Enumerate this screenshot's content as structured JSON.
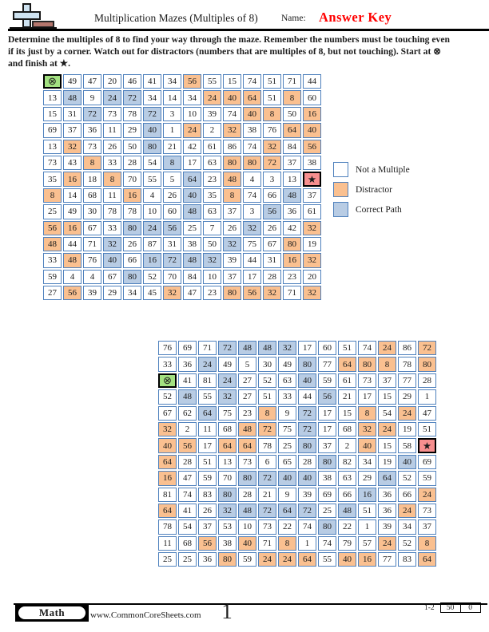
{
  "header": {
    "title": "Multiplication Mazes (Multiples of 8)",
    "name_label": "Name:",
    "answer_key": "Answer Key"
  },
  "instructions": {
    "lines": [
      "Determine the multiples of 8 to find your way through the maze. Remember the numbers must be touching even",
      "if its just by a corner. Watch out for distractors (numbers that are multiples of 8, but not touching). Start at ⊗",
      "and finish at ★."
    ]
  },
  "symbols": {
    "start": "⊗",
    "finish": "★"
  },
  "colors": {
    "grid_border": "#4f81bd",
    "path_fill": "#b8cce4",
    "distractor_fill": "#fac090",
    "start_fill": "#a3e181",
    "finish_fill": "#f78f8f",
    "answer_key_red": "#ff0000"
  },
  "legend": {
    "items": [
      {
        "label": "Not a Multiple",
        "swatch": "white"
      },
      {
        "label": "Distractor",
        "swatch": "orange"
      },
      {
        "label": "Correct Path",
        "swatch": "blue"
      }
    ]
  },
  "mazes": [
    {
      "rows": [
        [
          "⊗",
          "49",
          "47",
          "20",
          "46",
          "41",
          "34",
          "56",
          "55",
          "15",
          "74",
          "51",
          "71",
          "44"
        ],
        [
          "13",
          "48",
          "9",
          "24",
          "72",
          "34",
          "14",
          "34",
          "24",
          "40",
          "64",
          "51",
          "8",
          "60"
        ],
        [
          "15",
          "31",
          "72",
          "73",
          "78",
          "72",
          "3",
          "10",
          "39",
          "74",
          "40",
          "8",
          "50",
          "16"
        ],
        [
          "69",
          "37",
          "36",
          "11",
          "29",
          "40",
          "1",
          "24",
          "2",
          "32",
          "38",
          "76",
          "64",
          "40"
        ],
        [
          "13",
          "32",
          "73",
          "26",
          "50",
          "80",
          "21",
          "42",
          "61",
          "86",
          "74",
          "32",
          "84",
          "56"
        ],
        [
          "73",
          "43",
          "8",
          "33",
          "28",
          "54",
          "8",
          "17",
          "63",
          "80",
          "80",
          "72",
          "37",
          "38"
        ],
        [
          "35",
          "16",
          "18",
          "8",
          "70",
          "55",
          "5",
          "64",
          "23",
          "48",
          "4",
          "3",
          "13",
          "★"
        ],
        [
          "8",
          "14",
          "68",
          "11",
          "16",
          "4",
          "26",
          "40",
          "35",
          "8",
          "74",
          "66",
          "48",
          "37"
        ],
        [
          "25",
          "49",
          "30",
          "78",
          "78",
          "10",
          "60",
          "48",
          "63",
          "37",
          "3",
          "56",
          "36",
          "61"
        ],
        [
          "56",
          "16",
          "67",
          "33",
          "80",
          "24",
          "56",
          "25",
          "7",
          "26",
          "32",
          "26",
          "42",
          "32"
        ],
        [
          "48",
          "44",
          "71",
          "32",
          "26",
          "87",
          "31",
          "38",
          "50",
          "32",
          "75",
          "67",
          "80",
          "19"
        ],
        [
          "33",
          "48",
          "76",
          "40",
          "66",
          "16",
          "72",
          "48",
          "32",
          "39",
          "44",
          "31",
          "16",
          "32"
        ],
        [
          "59",
          "4",
          "4",
          "67",
          "80",
          "52",
          "70",
          "84",
          "10",
          "37",
          "17",
          "28",
          "23",
          "20"
        ],
        [
          "27",
          "56",
          "39",
          "29",
          "34",
          "45",
          "32",
          "47",
          "23",
          "80",
          "56",
          "32",
          "71",
          "32"
        ]
      ],
      "types": [
        "s......d......",
        ".p.pp...ddd.d.",
        "..p..p....dd.d",
        ".....p.d.d..dd",
        ".d...p.....d.d",
        "..d...p..ddd..",
        ".d.d...p.d...e",
        "d...d..p.d..p.",
        ".......p...p..",
        "dd..ppp...p..d",
        "d..p.....p..d.",
        ".d.p.pppp...dd",
        "....p.........",
        ".d....d..ddd.d"
      ]
    },
    {
      "rows": [
        [
          "76",
          "69",
          "71",
          "72",
          "48",
          "48",
          "32",
          "17",
          "60",
          "51",
          "74",
          "24",
          "86",
          "72"
        ],
        [
          "33",
          "36",
          "24",
          "49",
          "5",
          "30",
          "49",
          "80",
          "77",
          "64",
          "80",
          "8",
          "78",
          "80"
        ],
        [
          "⊗",
          "41",
          "81",
          "24",
          "27",
          "52",
          "63",
          "40",
          "59",
          "61",
          "73",
          "37",
          "77",
          "28"
        ],
        [
          "52",
          "48",
          "55",
          "32",
          "27",
          "51",
          "33",
          "44",
          "56",
          "21",
          "17",
          "15",
          "29",
          "1"
        ],
        [
          "67",
          "62",
          "64",
          "75",
          "23",
          "8",
          "9",
          "72",
          "17",
          "15",
          "8",
          "54",
          "24",
          "47"
        ],
        [
          "32",
          "2",
          "11",
          "68",
          "48",
          "72",
          "75",
          "72",
          "17",
          "68",
          "32",
          "24",
          "19",
          "51"
        ],
        [
          "40",
          "56",
          "17",
          "64",
          "64",
          "78",
          "25",
          "80",
          "37",
          "2",
          "40",
          "15",
          "58",
          "★"
        ],
        [
          "64",
          "28",
          "51",
          "13",
          "73",
          "6",
          "65",
          "28",
          "80",
          "82",
          "34",
          "19",
          "40",
          "69"
        ],
        [
          "16",
          "47",
          "59",
          "70",
          "80",
          "72",
          "40",
          "40",
          "38",
          "63",
          "29",
          "64",
          "52",
          "59"
        ],
        [
          "81",
          "74",
          "83",
          "80",
          "28",
          "21",
          "9",
          "39",
          "69",
          "66",
          "16",
          "36",
          "66",
          "24"
        ],
        [
          "64",
          "41",
          "26",
          "32",
          "48",
          "72",
          "64",
          "72",
          "25",
          "48",
          "51",
          "36",
          "24",
          "73"
        ],
        [
          "78",
          "54",
          "37",
          "53",
          "10",
          "73",
          "22",
          "74",
          "80",
          "22",
          "1",
          "39",
          "34",
          "37"
        ],
        [
          "11",
          "68",
          "56",
          "38",
          "40",
          "71",
          "8",
          "1",
          "74",
          "79",
          "57",
          "24",
          "52",
          "8"
        ],
        [
          "25",
          "25",
          "36",
          "80",
          "59",
          "24",
          "24",
          "64",
          "55",
          "40",
          "16",
          "77",
          "83",
          "64"
        ]
      ],
      "types": [
        "...pppp....d.d",
        "..p....p.ddd.d",
        "s..p...p......",
        ".p.p....p.....",
        "..p..d.p..d.d.",
        "d...dd.p..dd..",
        "dd.dd..p..d..e",
        "d.......p...p.",
        "d...pppp...p..",
        "...p......p..d",
        "d..ppppp.p..d.",
        "........p.....",
        "..d.d.d....d.d",
        "...d.ddd.dd..d"
      ]
    }
  ],
  "footer": {
    "subject": "Math",
    "url": "www.CommonCoreSheets.com",
    "page_number": "1",
    "page_range": "1-2",
    "score_boxes": [
      "50",
      "0"
    ]
  }
}
